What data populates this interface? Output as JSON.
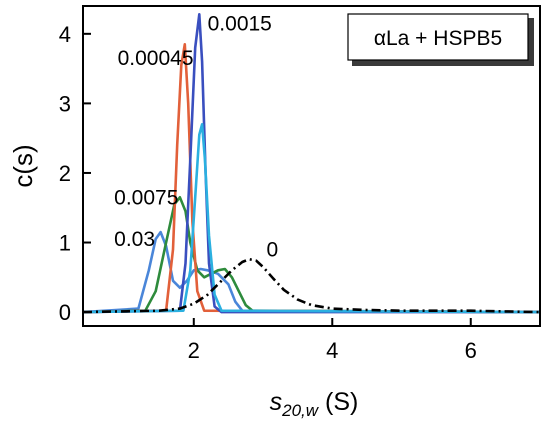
{
  "chart_data": {
    "type": "line",
    "title": "",
    "ylabel": "c(s)",
    "xlabel_main": "s",
    "xlabel_sub": "20,w",
    "xlabel_unit": " (S)",
    "legend": "αLa + HSPB5",
    "xlim": [
      0.4,
      7.0
    ],
    "ylim": [
      -0.2,
      4.4
    ],
    "x_ticks": [
      2,
      4,
      6
    ],
    "y_ticks": [
      0,
      1,
      2,
      3,
      4
    ],
    "series": [
      {
        "name": "0.03",
        "color": "#4a86d9",
        "dash": "solid",
        "x": [
          0.4,
          1.2,
          1.35,
          1.45,
          1.52,
          1.6,
          1.7,
          1.8,
          1.9,
          2.0,
          2.1,
          2.2,
          2.35,
          2.5,
          2.6,
          2.7,
          7.0
        ],
        "y": [
          0,
          0.05,
          0.6,
          1.05,
          1.15,
          0.95,
          0.45,
          0.35,
          0.45,
          0.6,
          0.62,
          0.6,
          0.55,
          0.4,
          0.15,
          0.02,
          0
        ]
      },
      {
        "name": "0.0075",
        "color": "#2e8b3c",
        "dash": "solid",
        "x": [
          0.4,
          1.3,
          1.45,
          1.6,
          1.72,
          1.8,
          1.88,
          1.95,
          2.05,
          2.15,
          2.25,
          2.35,
          2.45,
          2.55,
          2.65,
          2.75,
          2.85,
          7.0
        ],
        "y": [
          0,
          0.02,
          0.3,
          1.0,
          1.55,
          1.65,
          1.45,
          1.0,
          0.6,
          0.5,
          0.55,
          0.6,
          0.62,
          0.5,
          0.3,
          0.1,
          0.02,
          0
        ]
      },
      {
        "name": "0.00045",
        "color": "#e2603a",
        "dash": "solid",
        "x": [
          0.4,
          1.6,
          1.7,
          1.76,
          1.82,
          1.87,
          1.92,
          1.98,
          2.05,
          2.15,
          7.0
        ],
        "y": [
          0,
          0.02,
          0.9,
          2.4,
          3.55,
          3.85,
          3.0,
          1.3,
          0.3,
          0.02,
          0
        ]
      },
      {
        "name": "0.0015",
        "color": "#3a4fbf",
        "dash": "solid",
        "x": [
          0.4,
          1.8,
          1.88,
          1.95,
          2.02,
          2.08,
          2.12,
          2.17,
          2.22,
          2.3,
          2.4,
          7.0
        ],
        "y": [
          0,
          0.02,
          0.7,
          2.2,
          3.8,
          4.28,
          3.6,
          2.0,
          0.7,
          0.08,
          0,
          0
        ]
      },
      {
        "name": "",
        "color": "#2bb0e0",
        "dash": "solid",
        "x": [
          0.4,
          1.85,
          1.95,
          2.03,
          2.08,
          2.12,
          2.16,
          2.22,
          2.3,
          2.4,
          7.0
        ],
        "y": [
          0,
          0.02,
          0.6,
          1.8,
          2.55,
          2.7,
          2.2,
          1.1,
          0.25,
          0.02,
          0
        ]
      },
      {
        "name": "0",
        "color": "#000000",
        "dash": "dashdot",
        "x": [
          0.4,
          1.5,
          1.8,
          2.0,
          2.2,
          2.4,
          2.55,
          2.7,
          2.8,
          2.9,
          3.0,
          3.15,
          3.3,
          3.5,
          3.7,
          4.0,
          4.5,
          5.0,
          5.5,
          6.0,
          6.5,
          7.0
        ],
        "y": [
          0,
          0.02,
          0.05,
          0.12,
          0.25,
          0.45,
          0.6,
          0.72,
          0.76,
          0.74,
          0.65,
          0.48,
          0.32,
          0.18,
          0.1,
          0.05,
          0.03,
          0.02,
          0.02,
          0.02,
          0.01,
          0
        ]
      }
    ],
    "annotations": [
      {
        "text": "0.0015",
        "x": 2.2,
        "y": 4.05
      },
      {
        "text": "0.00045",
        "x": 0.9,
        "y": 3.55
      },
      {
        "text": "0.0075",
        "x": 0.85,
        "y": 1.55
      },
      {
        "text": "0.03",
        "x": 0.85,
        "y": 0.95
      },
      {
        "text": "0",
        "x": 3.05,
        "y": 0.8
      }
    ]
  }
}
